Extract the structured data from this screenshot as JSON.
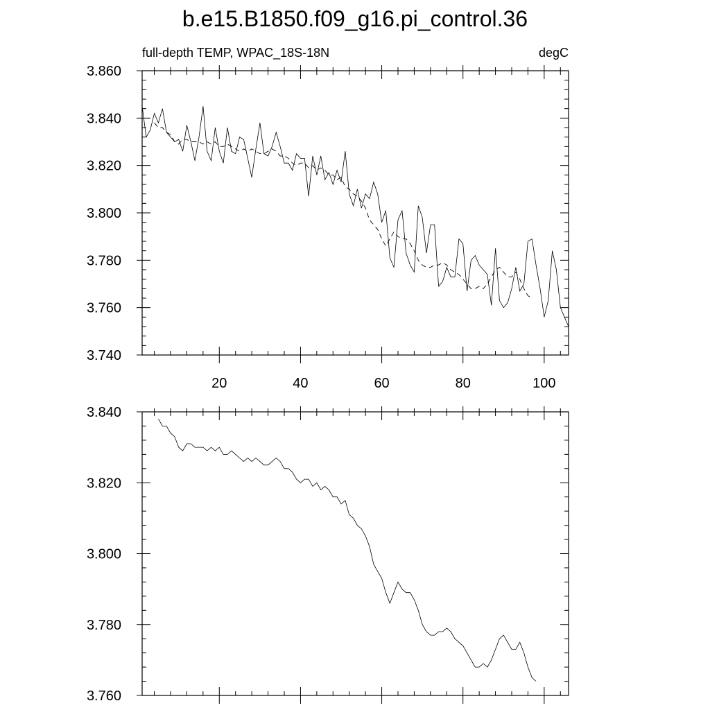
{
  "figure": {
    "title": "b.e15.B1850.f09_g16.pi_control.36"
  },
  "chart_data": [
    {
      "type": "line",
      "left_label": "full-depth TEMP, WPAC_18S-18N",
      "right_label": "degC",
      "xlim": [
        1,
        106
      ],
      "ylim": [
        3.74,
        3.86
      ],
      "xticks": [
        20,
        40,
        60,
        80,
        100
      ],
      "yticks": [
        "3.740",
        "3.760",
        "3.780",
        "3.800",
        "3.820",
        "3.840",
        "3.860"
      ],
      "x_start": 1,
      "series": [
        {
          "style": "solid",
          "values": [
            3.845,
            3.832,
            3.835,
            3.842,
            3.838,
            3.844,
            3.834,
            3.832,
            3.83,
            3.831,
            3.826,
            3.837,
            3.83,
            3.822,
            3.832,
            3.845,
            3.826,
            3.822,
            3.836,
            3.826,
            3.821,
            3.836,
            3.826,
            3.825,
            3.832,
            3.831,
            3.823,
            3.815,
            3.827,
            3.838,
            3.825,
            3.824,
            3.828,
            3.834,
            3.828,
            3.821,
            3.821,
            3.818,
            3.825,
            3.823,
            3.823,
            3.807,
            3.824,
            3.816,
            3.824,
            3.814,
            3.817,
            3.812,
            3.818,
            3.813,
            3.826,
            3.808,
            3.803,
            3.81,
            3.802,
            3.808,
            3.806,
            3.813,
            3.808,
            3.796,
            3.801,
            3.781,
            3.777,
            3.797,
            3.801,
            3.783,
            3.778,
            3.775,
            3.803,
            3.798,
            3.783,
            3.795,
            3.795,
            3.769,
            3.771,
            3.777,
            3.773,
            3.773,
            3.789,
            3.787,
            3.767,
            3.78,
            3.782,
            3.778,
            3.776,
            3.774,
            3.761,
            3.785,
            3.763,
            3.76,
            3.762,
            3.768,
            3.777,
            3.767,
            3.77,
            3.788,
            3.789,
            3.778,
            3.768,
            3.756,
            3.763,
            3.784,
            3.776,
            3.76,
            3.756,
            3.752
          ]
        },
        {
          "style": "dashed",
          "x_start": 4,
          "values": [
            3.838,
            3.836,
            3.836,
            3.834,
            3.833,
            3.83,
            3.829,
            3.831,
            3.831,
            3.83,
            3.83,
            3.83,
            3.829,
            3.83,
            3.829,
            3.83,
            3.828,
            3.828,
            3.829,
            3.828,
            3.827,
            3.826,
            3.827,
            3.826,
            3.827,
            3.826,
            3.825,
            3.825,
            3.826,
            3.827,
            3.826,
            3.824,
            3.824,
            3.823,
            3.821,
            3.82,
            3.821,
            3.821,
            3.819,
            3.82,
            3.818,
            3.819,
            3.818,
            3.816,
            3.816,
            3.814,
            3.815,
            3.811,
            3.81,
            3.808,
            3.807,
            3.805,
            3.802,
            3.797,
            3.795,
            3.793,
            3.789,
            3.786,
            3.789,
            3.792,
            3.79,
            3.789,
            3.789,
            3.787,
            3.784,
            3.78,
            3.778,
            3.777,
            3.777,
            3.778,
            3.778,
            3.779,
            3.778,
            3.776,
            3.775,
            3.774,
            3.772,
            3.77,
            3.768,
            3.768,
            3.769,
            3.768,
            3.77,
            3.773,
            3.776,
            3.777,
            3.775,
            3.773,
            3.773,
            3.775,
            3.772,
            3.768,
            3.765,
            3.764
          ]
        }
      ]
    },
    {
      "type": "line",
      "xlim": [
        1,
        106
      ],
      "ylim": [
        3.76,
        3.84
      ],
      "xticks": [
        20,
        40,
        60,
        80,
        100
      ],
      "yticks": [
        "3.760",
        "3.780",
        "3.800",
        "3.820",
        "3.840"
      ],
      "series": [
        {
          "style": "solid",
          "x_start": 5,
          "values": [
            3.838,
            3.836,
            3.836,
            3.834,
            3.833,
            3.83,
            3.829,
            3.831,
            3.831,
            3.83,
            3.83,
            3.83,
            3.829,
            3.83,
            3.829,
            3.83,
            3.828,
            3.828,
            3.829,
            3.828,
            3.827,
            3.826,
            3.827,
            3.826,
            3.827,
            3.826,
            3.825,
            3.825,
            3.826,
            3.827,
            3.826,
            3.824,
            3.824,
            3.823,
            3.821,
            3.82,
            3.821,
            3.821,
            3.819,
            3.82,
            3.818,
            3.819,
            3.818,
            3.816,
            3.816,
            3.814,
            3.815,
            3.811,
            3.81,
            3.808,
            3.807,
            3.805,
            3.802,
            3.797,
            3.795,
            3.793,
            3.789,
            3.786,
            3.789,
            3.792,
            3.79,
            3.789,
            3.789,
            3.787,
            3.784,
            3.78,
            3.778,
            3.777,
            3.777,
            3.778,
            3.778,
            3.779,
            3.778,
            3.776,
            3.775,
            3.774,
            3.772,
            3.77,
            3.768,
            3.768,
            3.769,
            3.768,
            3.77,
            3.773,
            3.776,
            3.777,
            3.775,
            3.773,
            3.773,
            3.775,
            3.772,
            3.768,
            3.765,
            3.764
          ]
        }
      ]
    }
  ]
}
